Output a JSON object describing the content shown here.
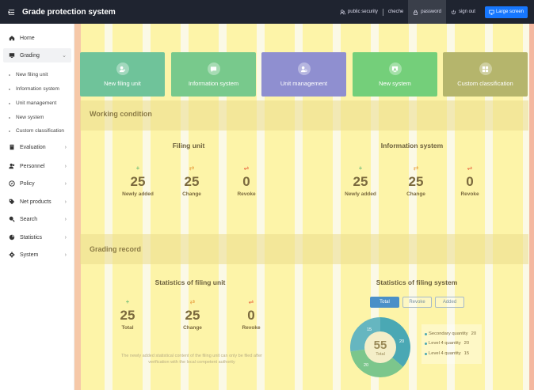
{
  "header": {
    "title": "Grade protection system",
    "links": {
      "public_security": "public security",
      "cheche": "cheche",
      "password": "password",
      "sign_out": "sign out",
      "large_screen": "Large screen"
    }
  },
  "sidebar": {
    "home": "Home",
    "grading": "Grading",
    "grading_sub": [
      "New filing unit",
      "Information system",
      "Unit management",
      "New system",
      "Custom classification"
    ],
    "evaluation": "Evaluation",
    "personnel": "Personnel",
    "policy": "Policy",
    "net_products": "Net products",
    "search": "Search",
    "statistics": "Statistics",
    "system": "System"
  },
  "quick_actions": [
    {
      "label": "New filing unit",
      "color": "#6fc39a"
    },
    {
      "label": "Information system",
      "color": "#78c98c"
    },
    {
      "label": "Unit management",
      "color": "#8f8fd0"
    },
    {
      "label": "New system",
      "color": "#74cf7a"
    },
    {
      "label": "Custom classification",
      "color": "#b5b56c"
    }
  ],
  "working_condition": {
    "title": "Working condition",
    "filing_unit": {
      "title": "Filing unit",
      "stats": [
        {
          "value": "25",
          "label": "Newly added",
          "icon": "plus-icon"
        },
        {
          "value": "25",
          "label": "Change",
          "icon": "shuffle-icon"
        },
        {
          "value": "0",
          "label": "Revoke",
          "icon": "revoke-icon"
        }
      ]
    },
    "information_system": {
      "title": "Information system",
      "stats": [
        {
          "value": "25",
          "label": "Newly added",
          "icon": "plus-icon"
        },
        {
          "value": "25",
          "label": "Change",
          "icon": "shuffle-icon"
        },
        {
          "value": "0",
          "label": "Revoke",
          "icon": "revoke-icon"
        }
      ]
    }
  },
  "grading_record": {
    "title": "Grading record",
    "filing_unit_stats": {
      "title": "Statistics of filing unit",
      "stats": [
        {
          "value": "25",
          "label": "Total",
          "icon": "plus-icon"
        },
        {
          "value": "25",
          "label": "Change",
          "icon": "shuffle-icon"
        },
        {
          "value": "0",
          "label": "Revoke",
          "icon": "revoke-icon"
        }
      ],
      "note": "The newly added statistical content of the filing unit can only be filed after verification with the local competent authority"
    },
    "filing_system_stats": {
      "title": "Statistics of filing system",
      "tabs": [
        "Total",
        "Revoke",
        "Added"
      ],
      "active_tab": "Total",
      "chart_data": {
        "type": "pie",
        "center_value": "55",
        "center_label": "Total",
        "slice_labels": [
          "15",
          "20",
          "20"
        ],
        "slices": [
          {
            "name": "Secondary quantity",
            "value": 20,
            "color": "#4aa8b4"
          },
          {
            "name": "Level 4 quantity",
            "value": 20,
            "color": "#7cc68c"
          },
          {
            "name": "Level 4 quantity",
            "value": 15,
            "color": "#66b6c0"
          }
        ]
      },
      "legend": [
        {
          "label": "Secondary quantity",
          "value": "20"
        },
        {
          "label": "Level 4 quantity",
          "value": "20"
        },
        {
          "label": "Level 4 quantity",
          "value": "15"
        }
      ]
    }
  }
}
